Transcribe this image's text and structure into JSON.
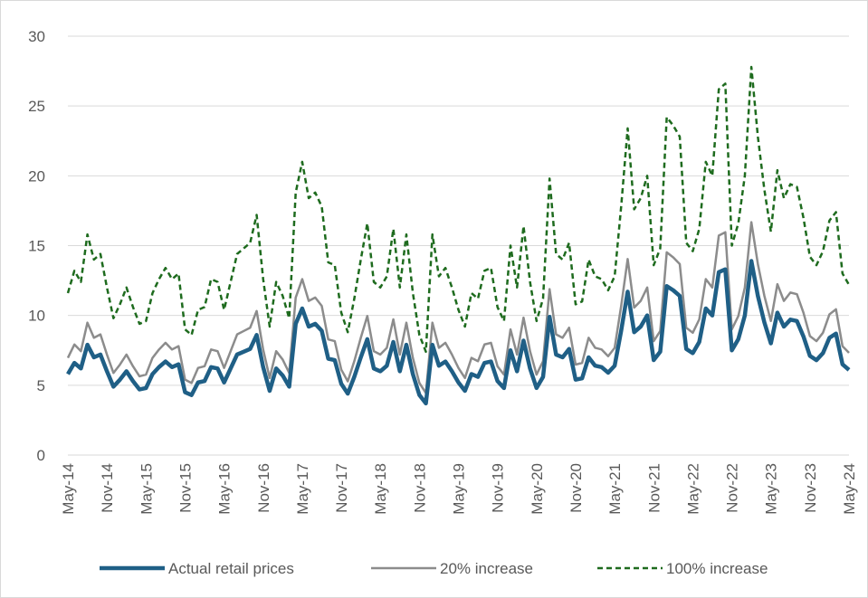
{
  "chart_data": {
    "type": "line",
    "categories": [
      "May-14",
      null,
      null,
      null,
      null,
      null,
      "Nov-14",
      null,
      null,
      null,
      null,
      null,
      "May-15",
      null,
      null,
      null,
      null,
      null,
      "Nov-15",
      null,
      null,
      null,
      null,
      null,
      "May-16",
      null,
      null,
      null,
      null,
      null,
      "Nov-16",
      null,
      null,
      null,
      null,
      null,
      "May-17",
      null,
      null,
      null,
      null,
      null,
      "Nov-17",
      null,
      null,
      null,
      null,
      null,
      "May-18",
      null,
      null,
      null,
      null,
      null,
      "Nov-18",
      null,
      null,
      null,
      null,
      null,
      "May-19",
      null,
      null,
      null,
      null,
      null,
      "Nov-19",
      null,
      null,
      null,
      null,
      null,
      "May-20",
      null,
      null,
      null,
      null,
      null,
      "Nov-20",
      null,
      null,
      null,
      null,
      null,
      "May-21",
      null,
      null,
      null,
      null,
      null,
      "Nov-21",
      null,
      null,
      null,
      null,
      null,
      "May-22",
      null,
      null,
      null,
      null,
      null,
      "Nov-22",
      null,
      null,
      null,
      null,
      null,
      "May-23",
      null,
      null,
      null,
      null,
      null,
      "Nov-23",
      null,
      null,
      null,
      null,
      null,
      "May-24"
    ],
    "series": [
      {
        "name": "Actual retail prices",
        "color": "#1f5f86",
        "width": 4.5,
        "dash": null,
        "values": [
          5.8,
          6.6,
          6.2,
          7.9,
          7.0,
          7.2,
          6.0,
          4.9,
          5.4,
          6.0,
          5.3,
          4.7,
          4.8,
          5.8,
          6.3,
          6.7,
          6.3,
          6.5,
          4.5,
          4.3,
          5.2,
          5.3,
          6.3,
          6.2,
          5.2,
          6.2,
          7.2,
          7.4,
          7.6,
          8.6,
          6.3,
          4.6,
          6.2,
          5.7,
          4.9,
          9.4,
          10.5,
          9.2,
          9.4,
          8.9,
          6.9,
          6.8,
          5.1,
          4.4,
          5.6,
          7.0,
          8.3,
          6.2,
          6.0,
          6.4,
          8.1,
          6.0,
          7.9,
          5.8,
          4.3,
          3.7,
          7.9,
          6.4,
          6.7,
          6.0,
          5.2,
          4.6,
          5.8,
          5.6,
          6.6,
          6.7,
          5.3,
          4.8,
          7.5,
          6.0,
          8.2,
          6.2,
          4.8,
          5.6,
          9.9,
          7.2,
          7.0,
          7.6,
          5.4,
          5.5,
          7.0,
          6.4,
          6.3,
          5.9,
          6.4,
          8.9,
          11.7,
          8.8,
          9.2,
          10.0,
          6.8,
          7.4,
          12.1,
          11.8,
          11.4,
          7.6,
          7.3,
          8.1,
          10.5,
          10.0,
          13.1,
          13.3,
          7.5,
          8.3,
          10.0,
          13.9,
          11.4,
          9.5,
          8.0,
          10.2,
          9.2,
          9.7,
          9.6,
          8.5,
          7.1,
          6.8,
          7.3,
          8.4,
          8.7,
          6.5,
          6.1
        ]
      },
      {
        "name": "20% increase",
        "color": "#8c8c8c",
        "width": 2.5,
        "dash": null,
        "values": [
          6.96,
          7.92,
          7.44,
          9.48,
          8.4,
          8.64,
          7.2,
          5.88,
          6.48,
          7.2,
          6.36,
          5.64,
          5.76,
          6.96,
          7.56,
          8.04,
          7.56,
          7.8,
          5.4,
          5.16,
          6.24,
          6.36,
          7.56,
          7.44,
          6.24,
          7.44,
          8.64,
          8.88,
          9.12,
          10.32,
          7.56,
          5.52,
          7.44,
          6.84,
          5.88,
          11.28,
          12.6,
          11.04,
          11.28,
          10.68,
          8.28,
          8.16,
          6.12,
          5.28,
          6.72,
          8.4,
          9.96,
          7.44,
          7.2,
          7.68,
          9.72,
          7.2,
          9.48,
          6.96,
          5.16,
          4.44,
          9.48,
          7.68,
          8.04,
          7.2,
          6.24,
          5.52,
          6.96,
          6.72,
          7.92,
          8.04,
          6.36,
          5.76,
          9,
          7.2,
          9.84,
          7.44,
          5.76,
          6.72,
          11.88,
          8.64,
          8.4,
          9.12,
          6.48,
          6.6,
          8.4,
          7.68,
          7.56,
          7.08,
          7.68,
          10.68,
          14.04,
          10.56,
          11.04,
          12,
          8.16,
          8.88,
          14.52,
          14.16,
          13.68,
          9.12,
          8.76,
          9.72,
          12.6,
          12,
          15.72,
          15.96,
          9,
          9.96,
          12,
          16.68,
          13.68,
          11.4,
          9.6,
          12.24,
          11.04,
          11.64,
          11.52,
          10.2,
          8.52,
          8.16,
          8.76,
          10.08,
          10.44,
          7.8,
          7.32
        ]
      },
      {
        "name": "100% increase",
        "color": "#1e6b1e",
        "width": 2.5,
        "dash": "6 4",
        "values": [
          11.6,
          13.2,
          12.4,
          15.8,
          14,
          14.4,
          12,
          9.8,
          10.8,
          12,
          10.6,
          9.4,
          9.6,
          11.6,
          12.6,
          13.4,
          12.6,
          13,
          9,
          8.6,
          10.4,
          10.6,
          12.6,
          12.4,
          10.4,
          12.4,
          14.4,
          14.8,
          15.2,
          17.2,
          12.6,
          9.2,
          12.4,
          11.4,
          9.8,
          18.8,
          21,
          18.4,
          18.8,
          17.8,
          13.8,
          13.6,
          10.2,
          8.8,
          11.2,
          14,
          16.6,
          12.4,
          12,
          12.8,
          16.2,
          12,
          15.8,
          11.6,
          8.6,
          7.4,
          15.8,
          12.8,
          13.4,
          12,
          10.4,
          9.2,
          11.6,
          11.2,
          13.2,
          13.4,
          10.6,
          9.6,
          15,
          12,
          16.4,
          12.4,
          9.6,
          11.2,
          19.8,
          14.4,
          14,
          15.2,
          10.8,
          11,
          14,
          12.8,
          12.6,
          11.8,
          12.8,
          17.8,
          23.4,
          17.6,
          18.4,
          20,
          13.6,
          14.8,
          24.2,
          23.6,
          22.8,
          15.2,
          14.6,
          16.2,
          21,
          20,
          26.2,
          26.6,
          15,
          16.6,
          20,
          27.8,
          22.8,
          19,
          16,
          20.4,
          18.4,
          19.4,
          19.2,
          17,
          14.2,
          13.6,
          14.6,
          16.8,
          17.4,
          13,
          12.2
        ]
      }
    ],
    "ylim": [
      0,
      30
    ],
    "yticks": [
      0,
      5,
      10,
      15,
      20,
      25,
      30
    ],
    "grid": true,
    "legend": "bottom"
  }
}
